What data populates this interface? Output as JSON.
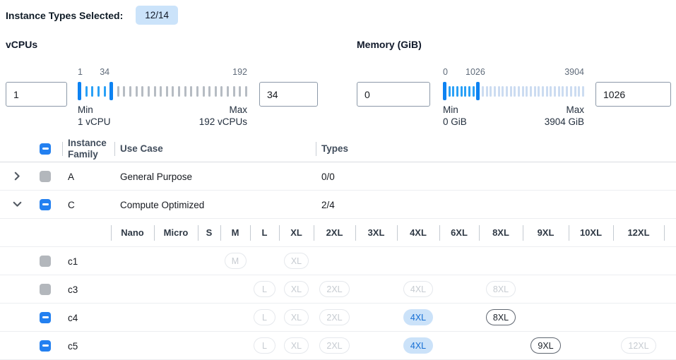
{
  "header": {
    "label": "Instance Types Selected:",
    "count_badge": "12/14"
  },
  "filters": [
    {
      "title": "vCPUs",
      "min_value": "1",
      "max_value": "34",
      "scale": {
        "low": "1",
        "mid": "34",
        "high": "192"
      },
      "min_caption": {
        "label": "Min",
        "value": "1 vCPU"
      },
      "max_caption": {
        "label": "Max",
        "value": "192 vCPUs"
      },
      "slider": {
        "selected_ticks": 4,
        "unselected_ticks": 22,
        "unselected_style": "gray"
      }
    },
    {
      "title": "Memory (GiB)",
      "min_value": "0",
      "max_value": "1026",
      "scale": {
        "low": "0",
        "mid": "1026",
        "high": "3904"
      },
      "min_caption": {
        "label": "Min",
        "value": "0 GiB"
      },
      "max_caption": {
        "label": "Max",
        "value": "3904 GiB"
      },
      "slider": {
        "selected_ticks": 7,
        "unselected_ticks": 26,
        "unselected_style": "light"
      }
    }
  ],
  "table": {
    "columns": [
      "Instance Family",
      "Use Case",
      "Types"
    ],
    "family_rows": [
      {
        "chevron": "right",
        "checkbox": "disabled",
        "family": "A",
        "use_case": "General Purpose",
        "types": "0/0"
      },
      {
        "chevron": "down",
        "checkbox": "indeterminate",
        "family": "C",
        "use_case": "Compute Optimized",
        "types": "2/4"
      }
    ],
    "sizes": [
      "Nano",
      "Micro",
      "S",
      "M",
      "L",
      "XL",
      "2XL",
      "3XL",
      "4XL",
      "6XL",
      "8XL",
      "9XL",
      "10XL",
      "12XL"
    ],
    "instance_rows": [
      {
        "name": "c1",
        "checkbox": "disabled",
        "badges": [
          {
            "size": "M",
            "state": "disabled"
          },
          {
            "size": "XL",
            "state": "disabled"
          }
        ]
      },
      {
        "name": "c3",
        "checkbox": "disabled",
        "badges": [
          {
            "size": "L",
            "state": "disabled"
          },
          {
            "size": "XL",
            "state": "disabled"
          },
          {
            "size": "2XL",
            "state": "disabled"
          },
          {
            "size": "4XL",
            "state": "disabled"
          },
          {
            "size": "8XL",
            "state": "disabled"
          }
        ]
      },
      {
        "name": "c4",
        "checkbox": "indeterminate",
        "badges": [
          {
            "size": "L",
            "state": "disabled"
          },
          {
            "size": "XL",
            "state": "disabled"
          },
          {
            "size": "2XL",
            "state": "disabled"
          },
          {
            "size": "4XL",
            "state": "selected"
          },
          {
            "size": "8XL",
            "state": "enabled"
          }
        ]
      },
      {
        "name": "c5",
        "checkbox": "indeterminate",
        "badges": [
          {
            "size": "L",
            "state": "disabled"
          },
          {
            "size": "XL",
            "state": "disabled"
          },
          {
            "size": "2XL",
            "state": "disabled"
          },
          {
            "size": "4XL",
            "state": "selected"
          },
          {
            "size": "9XL",
            "state": "enabled"
          },
          {
            "size": "12XL",
            "state": "disabled"
          }
        ]
      }
    ]
  },
  "colors": {
    "accent_blue": "#2380f0",
    "slider_blue": "#0d82f2",
    "selected_badge_bg": "#cbe2f9",
    "selected_badge_text": "#176fd4",
    "count_badge_bg": "#cbe3fa"
  }
}
